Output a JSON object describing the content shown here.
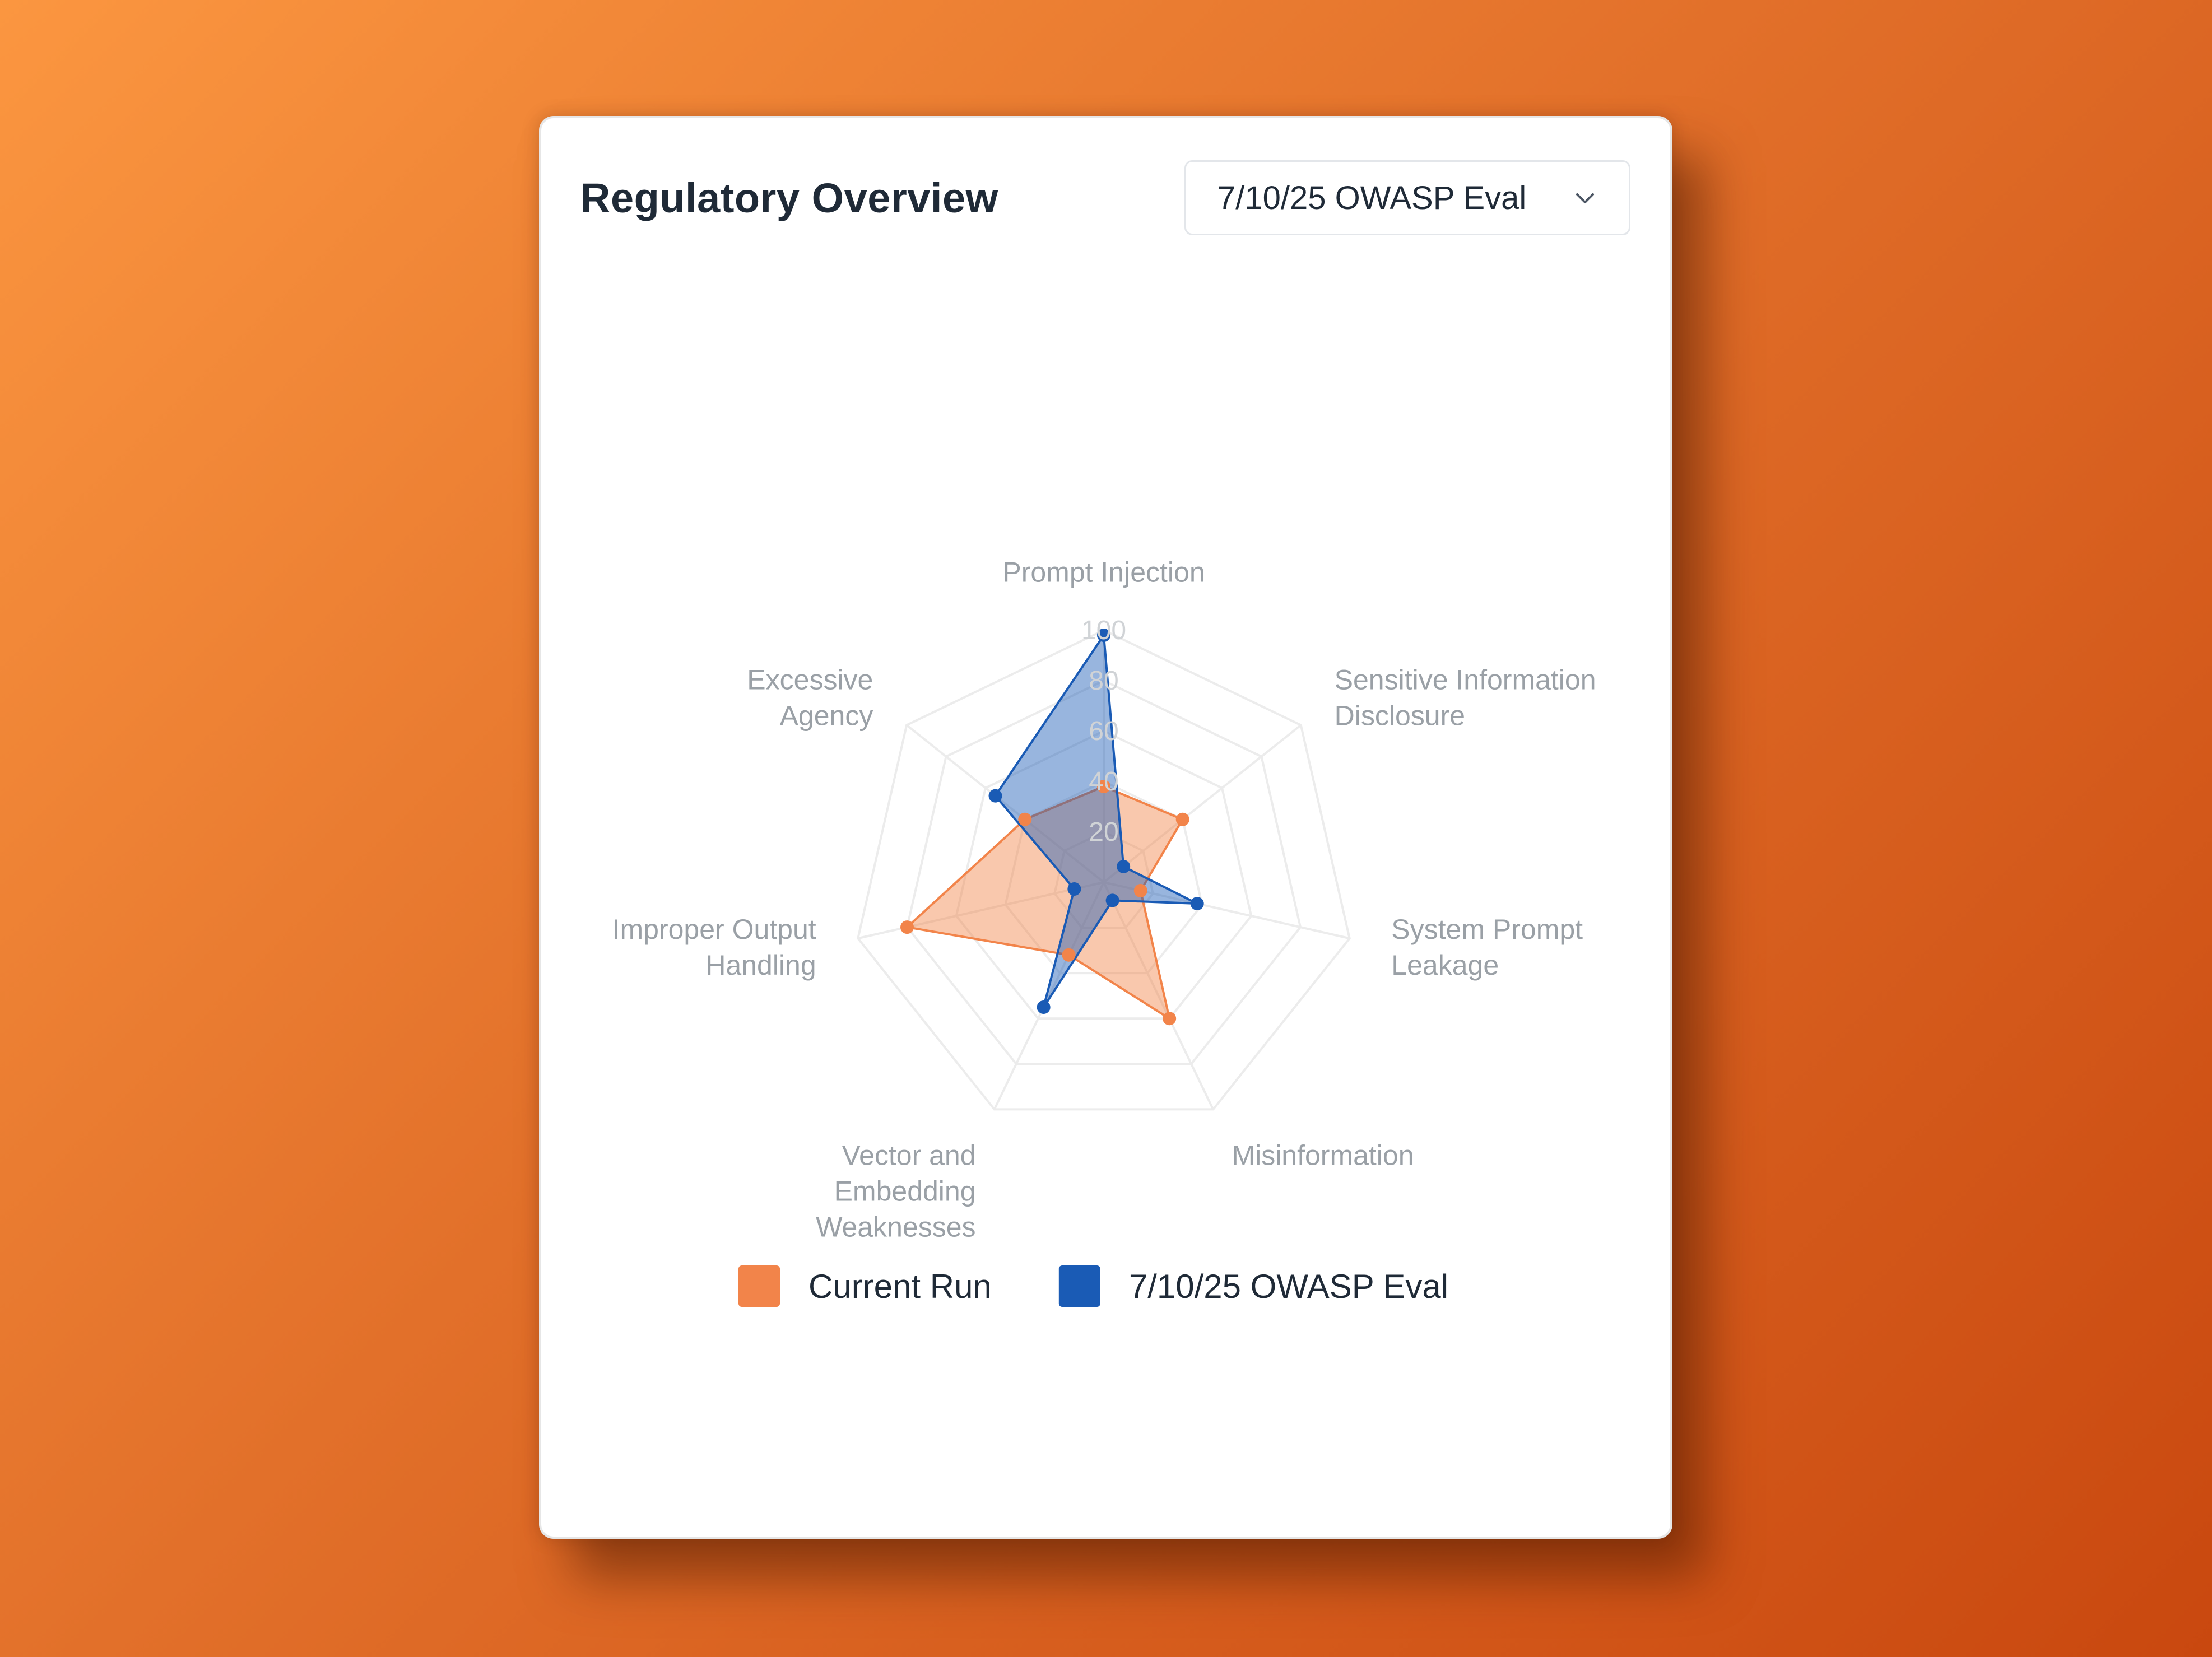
{
  "card": {
    "title": "Regulatory Overview",
    "dropdown": {
      "selected": "7/10/25 OWASP Eval",
      "icon": "chevron-down-icon"
    }
  },
  "chart_data": {
    "type": "radar",
    "categories": [
      [
        "Prompt Injection"
      ],
      [
        "Sensitive Information",
        "Disclosure"
      ],
      [
        "System Prompt",
        "Leakage"
      ],
      [
        "Misinformation"
      ],
      [
        "Vector and",
        "Embedding",
        "Weaknesses"
      ],
      [
        "Improper Output",
        "Handling"
      ],
      [
        "Excessive",
        "Agency"
      ]
    ],
    "category_labels": [
      "Prompt Injection",
      "Sensitive Information Disclosure",
      "System Prompt Leakage",
      "Misinformation",
      "Vector and Embedding Weaknesses",
      "Improper Output Handling",
      "Excessive Agency"
    ],
    "series": [
      {
        "name": "Current Run",
        "values": [
          38,
          40,
          15,
          60,
          32,
          80,
          40
        ],
        "color": "#f2844a"
      },
      {
        "name": "7/10/25 OWASP Eval",
        "values": [
          98,
          10,
          38,
          8,
          55,
          12,
          55
        ],
        "color": "#1a5bb5"
      }
    ],
    "r_ticks": [
      20,
      40,
      60,
      80,
      100
    ],
    "r_range": [
      0,
      100
    ],
    "grid": true,
    "legend_position": "bottom"
  }
}
